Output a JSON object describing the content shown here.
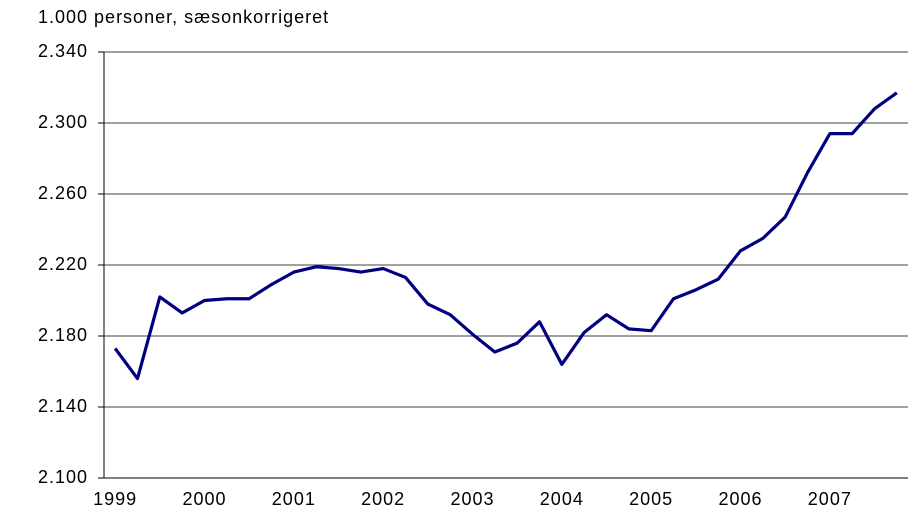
{
  "chart_data": {
    "type": "line",
    "y_axis_label": "1.000 personer, sæsonkorrigeret",
    "categories": [
      "1999",
      null,
      null,
      null,
      "2000",
      null,
      null,
      null,
      "2001",
      null,
      null,
      null,
      "2002",
      null,
      null,
      null,
      "2003",
      null,
      null,
      null,
      "2004",
      null,
      null,
      null,
      "2005",
      null,
      null,
      null,
      "2006",
      null,
      null,
      null,
      "2007",
      null,
      null,
      null
    ],
    "series": [
      {
        "color": "#000080",
        "values": [
          2173,
          2156,
          2202,
          2193,
          2200,
          2201,
          2201,
          2209,
          2216,
          2219,
          2218,
          2216,
          2218,
          2213,
          2198,
          2192,
          2181,
          2171,
          2176,
          2188,
          2164,
          2182,
          2192,
          2184,
          2183,
          2201,
          2206,
          2212,
          2228,
          2235,
          2247,
          2272,
          2294,
          2294,
          2308,
          2317
        ]
      }
    ],
    "ylim": [
      2100,
      2340
    ],
    "yticks": [
      {
        "value": 2100,
        "label": "2.100"
      },
      {
        "value": 2140,
        "label": "2.140"
      },
      {
        "value": 2180,
        "label": "2.180"
      },
      {
        "value": 2220,
        "label": "2.220"
      },
      {
        "value": 2260,
        "label": "2.260"
      },
      {
        "value": 2300,
        "label": "2.300"
      },
      {
        "value": 2340,
        "label": "2.340"
      }
    ],
    "grid": true
  }
}
